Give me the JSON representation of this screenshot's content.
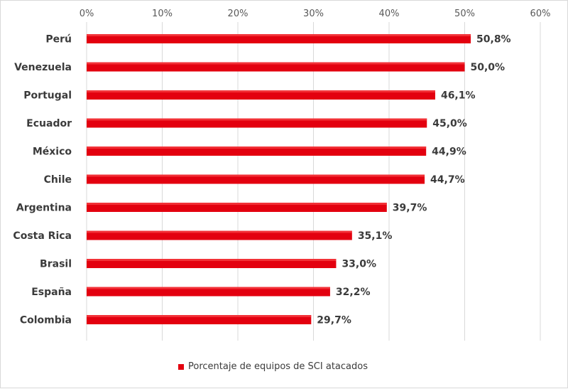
{
  "chart_data": {
    "type": "bar",
    "orientation": "horizontal",
    "categories": [
      "Perú",
      "Venezuela",
      "Portugal",
      "Ecuador",
      "México",
      "Chile",
      "Argentina",
      "Costa Rica",
      "Brasil",
      "España",
      "Colombia"
    ],
    "series": [
      {
        "name": "Porcentaje de equipos de SCI atacados",
        "values": [
          50.8,
          50.0,
          46.1,
          45.0,
          44.9,
          44.7,
          39.7,
          35.1,
          33.0,
          32.2,
          29.7
        ],
        "data_labels": [
          "50,8%",
          "50,0%",
          "46,1%",
          "45,0%",
          "44,9%",
          "44,7%",
          "39,7%",
          "35,1%",
          "33,0%",
          "32,2%",
          "29,7%"
        ]
      }
    ],
    "x_ticks": [
      "0%",
      "10%",
      "20%",
      "30%",
      "40%",
      "50%",
      "60%"
    ],
    "xlim": [
      0,
      60
    ],
    "grid": true,
    "legend_position": "bottom",
    "colors": {
      "bar": "#e3000f",
      "grid": "#d9d9d9"
    }
  }
}
